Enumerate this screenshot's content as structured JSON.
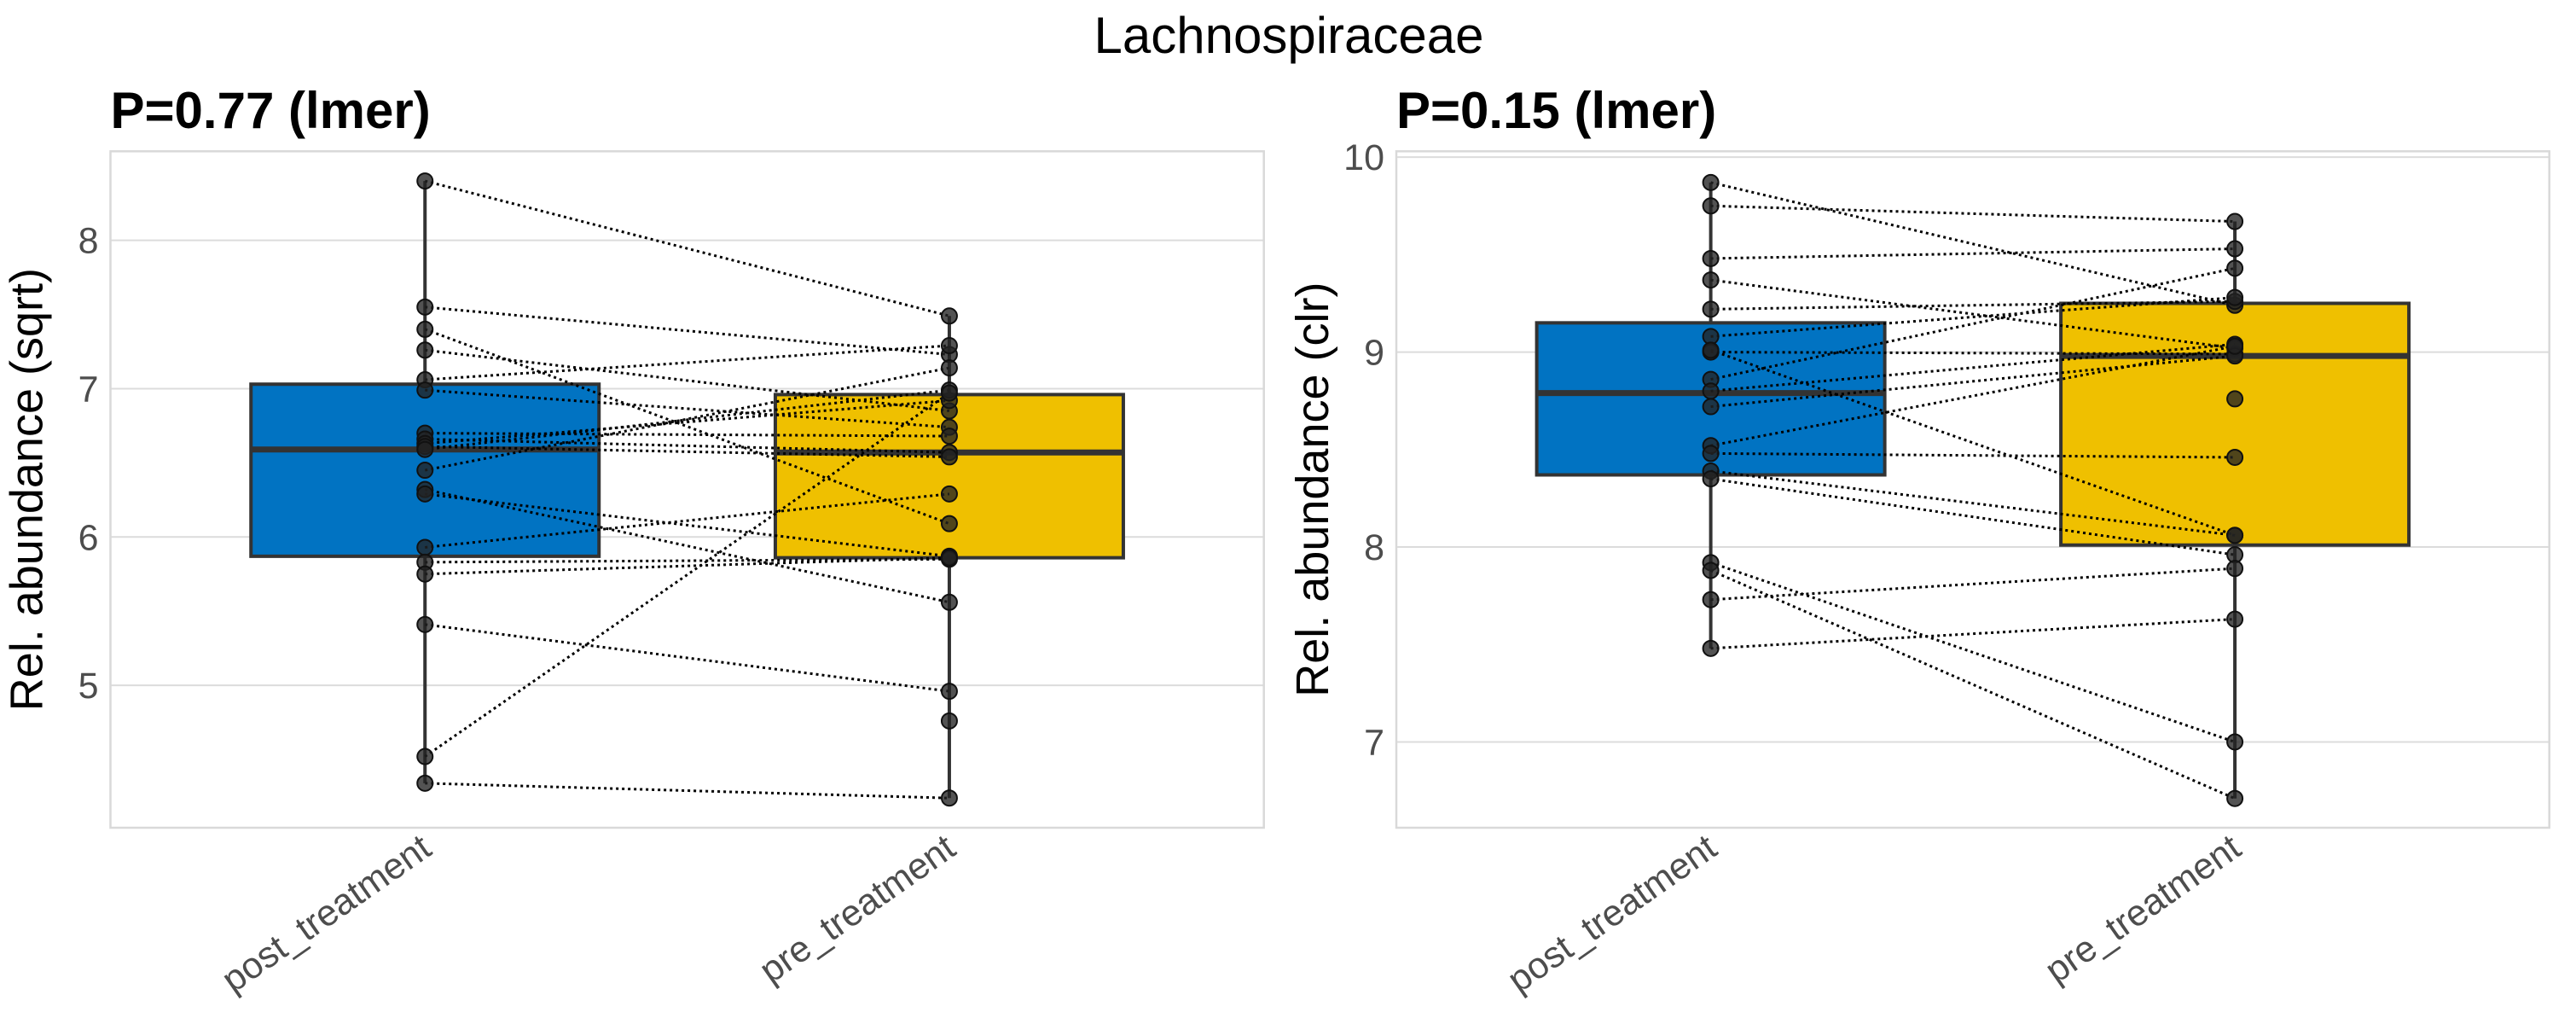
{
  "chart_data": {
    "type": "box",
    "title": "Lachnospiraceae",
    "panels": [
      {
        "title": "P=0.77 (lmer)",
        "xlabel": "",
        "ylabel": "Rel. abundance (sqrt)",
        "categories": [
          "post_treatment",
          "pre_treatment"
        ],
        "ylim": [
          4.04,
          8.6
        ],
        "yticks": [
          5,
          6,
          7,
          8
        ],
        "grid": true,
        "box_colors": [
          "#0173C2",
          "#EFC000"
        ],
        "boxes": [
          {
            "category": "post_treatment",
            "whisker_low": 4.34,
            "q1": 5.87,
            "median": 6.59,
            "q3": 7.03,
            "whisker_high": 8.4
          },
          {
            "category": "pre_treatment",
            "whisker_low": 4.24,
            "q1": 5.86,
            "median": 6.57,
            "q3": 6.96,
            "whisker_high": 7.49
          }
        ],
        "pairs": [
          {
            "post": 8.4,
            "pre": 7.49
          },
          {
            "post": 7.55,
            "pre": 7.23
          },
          {
            "post": 7.4,
            "pre": 6.09
          },
          {
            "post": 7.26,
            "pre": 6.85
          },
          {
            "post": 7.06,
            "pre": 7.29
          },
          {
            "post": 6.99,
            "pre": 6.74
          },
          {
            "post": 6.7,
            "pre": 6.68
          },
          {
            "post": 6.66,
            "pre": 6.57
          },
          {
            "post": 6.63,
            "pre": 6.92
          },
          {
            "post": 6.61,
            "pre": 6.54
          },
          {
            "post": 6.59,
            "pre": 6.99
          },
          {
            "post": 6.45,
            "pre": 7.14
          },
          {
            "post": 6.32,
            "pre": 5.56
          },
          {
            "post": 6.29,
            "pre": 5.87
          },
          {
            "post": 5.93,
            "pre": 6.29
          },
          {
            "post": 5.83,
            "pre": 5.85
          },
          {
            "post": 5.75,
            "pre": 5.86
          },
          {
            "post": 5.41,
            "pre": 4.96
          },
          {
            "post": 4.52,
            "pre": 6.97
          },
          {
            "post": 4.34,
            "pre": 4.24
          },
          {
            "post": null,
            "pre": 4.76
          }
        ]
      },
      {
        "title": "P=0.15 (lmer)",
        "xlabel": "",
        "ylabel": "Rel. abundance (clr)",
        "categories": [
          "post_treatment",
          "pre_treatment"
        ],
        "ylim": [
          6.56,
          10.03
        ],
        "yticks": [
          7,
          8,
          9,
          10
        ],
        "grid": true,
        "box_colors": [
          "#0173C2",
          "#EFC000"
        ],
        "boxes": [
          {
            "category": "post_treatment",
            "whisker_low": 7.48,
            "q1": 8.37,
            "median": 8.79,
            "q3": 9.15,
            "whisker_high": 9.87
          },
          {
            "category": "pre_treatment",
            "whisker_low": 6.71,
            "q1": 8.01,
            "median": 8.98,
            "q3": 9.25,
            "whisker_high": 9.67
          }
        ],
        "pairs": [
          {
            "post": 9.87,
            "pre": 9.24
          },
          {
            "post": 9.75,
            "pre": 9.67
          },
          {
            "post": 9.48,
            "pre": 9.53
          },
          {
            "post": 9.37,
            "pre": 9.02
          },
          {
            "post": 9.22,
            "pre": 9.26
          },
          {
            "post": 9.08,
            "pre": 9.28
          },
          {
            "post": 9.0,
            "pre": 8.99
          },
          {
            "post": 9.01,
            "pre": 8.06
          },
          {
            "post": 8.86,
            "pre": 9.43
          },
          {
            "post": 8.8,
            "pre": 9.04
          },
          {
            "post": 8.72,
            "pre": 8.98
          },
          {
            "post": 8.52,
            "pre": 9.03
          },
          {
            "post": 8.48,
            "pre": 8.46
          },
          {
            "post": 8.39,
            "pre": 8.06
          },
          {
            "post": 8.35,
            "pre": 7.96
          },
          {
            "post": 7.92,
            "pre": 7.0
          },
          {
            "post": 7.88,
            "pre": 6.71
          },
          {
            "post": 7.73,
            "pre": 7.89
          },
          {
            "post": 7.48,
            "pre": 7.63
          },
          {
            "post": null,
            "pre": 8.76
          }
        ]
      }
    ]
  }
}
